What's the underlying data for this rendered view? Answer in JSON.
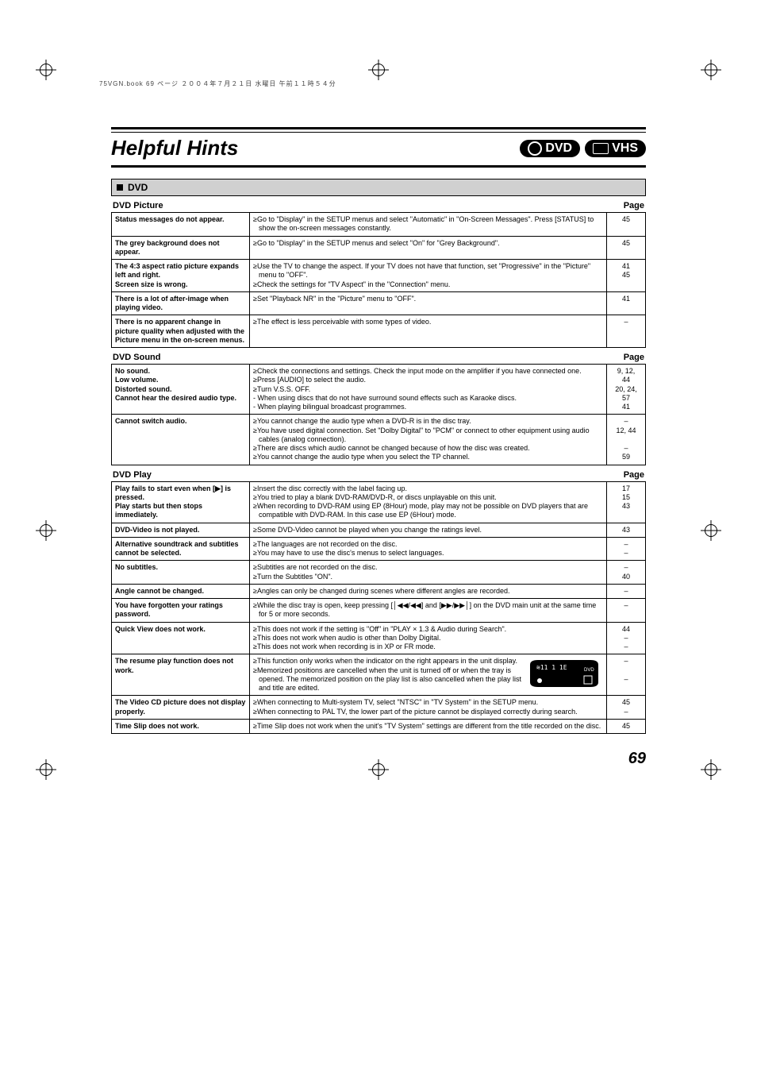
{
  "printersLine": "75VGN.book  69 ページ  ２００４年７月２１日  水曜日  午前１１時５４分",
  "title": "Helpful Hints",
  "badges": {
    "dvd": "DVD",
    "vhs": "VHS"
  },
  "pageNumber": "69",
  "section": {
    "label": "DVD",
    "pageWord": "Page"
  },
  "tables": [
    {
      "subhead": "DVD Picture",
      "rows": [
        {
          "symptom": "Status messages do not appear.",
          "remedy": [
            "≥Go to \"Display\" in the SETUP menus and select \"Automatic\" in \"On-Screen Messages\". Press [STATUS] to show the on-screen messages constantly."
          ],
          "page": "45"
        },
        {
          "symptom": "The grey background does not appear.",
          "remedy": [
            "≥Go to \"Display\" in the SETUP menus and select \"On\" for \"Grey Background\"."
          ],
          "page": "45"
        },
        {
          "symptom": "The 4:3 aspect ratio picture expands left and right.\nScreen size is wrong.",
          "remedy": [
            "≥Use the TV to change the aspect. If your TV does not have that function, set \"Progressive\" in the \"Picture\" menu to \"OFF\".",
            "≥Check the settings for \"TV Aspect\" in the \"Connection\" menu."
          ],
          "page": "41\n45"
        },
        {
          "symptom": "There is a lot of after-image when playing video.",
          "remedy": [
            "≥Set \"Playback NR\" in the \"Picture\" menu to \"OFF\"."
          ],
          "page": "41"
        },
        {
          "symptom": "There is no apparent change in picture quality when adjusted with the Picture menu in the on-screen menus.",
          "remedy": [
            "≥The effect is less perceivable with some types of video."
          ],
          "page": "–"
        }
      ]
    },
    {
      "subhead": "DVD Sound",
      "rows": [
        {
          "symptom": "No sound.\nLow volume.\nDistorted sound.\nCannot hear the desired audio type.",
          "remedy": [
            "≥Check the connections and settings. Check the input mode on the amplifier if you have connected one.",
            "≥Press [AUDIO] to select the audio.",
            "≥Turn V.S.S. OFF.",
            "  - When using discs that do not have surround sound effects such as Karaoke discs.",
            "  - When playing bilingual broadcast programmes."
          ],
          "page": "9, 12,\n44\n20, 24,\n57\n41"
        },
        {
          "symptom": "Cannot switch audio.",
          "remedy": [
            "≥You cannot change the audio type when a DVD-R is in the disc tray.",
            "≥You have used digital connection. Set \"Dolby Digital\" to \"PCM\" or connect to other equipment using audio cables (analog connection).",
            "≥There are discs which audio cannot be changed because of how the disc was created.",
            "≥You cannot change the audio type when you select the TP channel."
          ],
          "page": "–\n12, 44\n\n–\n59"
        }
      ]
    },
    {
      "subhead": "DVD Play",
      "rows": [
        {
          "symptom": "Play fails to start even when [▶] is pressed.\nPlay starts but then stops immediately.",
          "remedy": [
            "≥Insert the disc correctly with the label facing up.",
            "≥You tried to play a blank DVD-RAM/DVD-R, or discs unplayable on this unit.",
            "≥When recording to DVD-RAM using EP (8Hour) mode, play may not be possible on DVD players that are compatible with DVD-RAM. In this case use EP (6Hour) mode."
          ],
          "page": "17\n15\n43"
        },
        {
          "symptom": "DVD-Video is not played.",
          "remedy": [
            "≥Some DVD-Video cannot be played when you change the ratings level."
          ],
          "page": "43"
        },
        {
          "symptom": "Alternative soundtrack and subtitles cannot be selected.",
          "remedy": [
            "≥The languages are not recorded on the disc.",
            "≥You may have to use the disc's menus to select languages."
          ],
          "page": "–\n–"
        },
        {
          "symptom": "No subtitles.",
          "remedy": [
            "≥Subtitles are not recorded on the disc.",
            "≥Turn the Subtitles \"ON\"."
          ],
          "page": "–\n40"
        },
        {
          "symptom": "Angle cannot be changed.",
          "remedy": [
            "≥Angles can only be changed during scenes where different angles are recorded."
          ],
          "page": "–"
        },
        {
          "symptom": "You have forgotten your ratings password.",
          "remedy": [
            "≥While the disc tray is open, keep pressing [│◀◀/◀◀] and [▶▶/▶▶│] on the DVD main unit at the same time for 5 or more seconds."
          ],
          "page": "–"
        },
        {
          "symptom": "Quick View does not work.",
          "remedy": [
            "≥This does not work if the setting is \"Off\" in \"PLAY × 1.3 & Audio during Search\".",
            "≥This does not work when audio is other than Dolby Digital.",
            "≥This does not work when recording is in XP or FR mode."
          ],
          "page": "44\n–\n–"
        },
        {
          "symptom": "The resume play function does not work.",
          "remedy": [
            "≥This function only works when the indicator on the right appears in the unit display.",
            "≥Memorized positions are cancelled when the unit is turned off or when the tray is opened. The memorized position on the play list is also cancelled when the play list and title are edited."
          ],
          "page": "–\n\n–",
          "hasDisplay": true
        },
        {
          "symptom": "The Video CD picture does not display properly.",
          "remedy": [
            "≥When connecting to Multi-system TV, select \"NTSC\" in \"TV System\" in the SETUP menu.",
            "≥When connecting to PAL TV, the lower part of the picture cannot be displayed correctly during search."
          ],
          "page": "45\n–"
        },
        {
          "symptom": "Time Slip does not work.",
          "remedy": [
            "≥Time Slip does not work when the unit's \"TV System\" settings are different from the title recorded on the disc."
          ],
          "page": "45"
        }
      ]
    }
  ]
}
